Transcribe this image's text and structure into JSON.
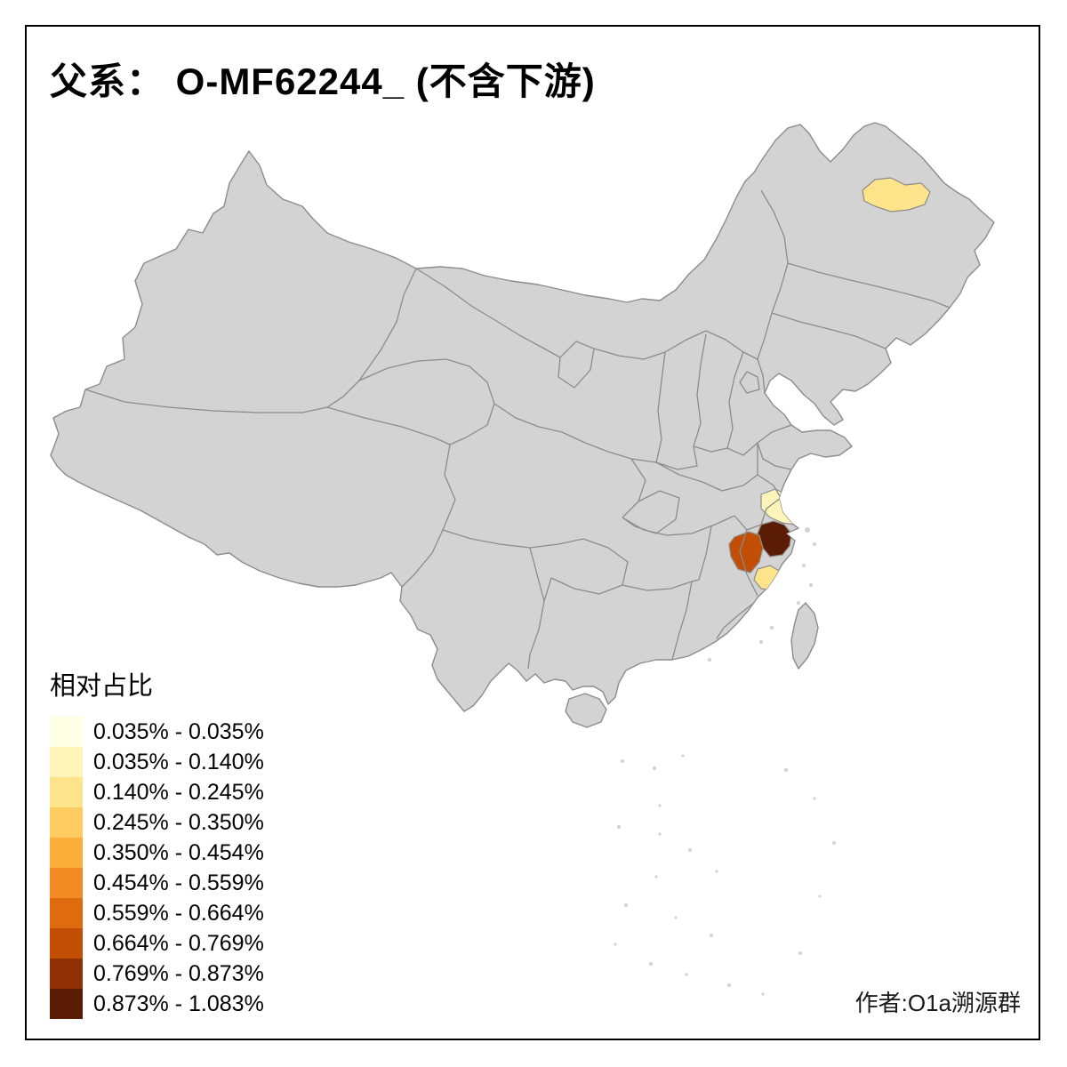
{
  "title": {
    "text": "父系： O-MF62244_ (不含下游)"
  },
  "legend": {
    "title": "相对占比",
    "classes": [
      {
        "label": "0.035% - 0.035%",
        "color": "#FFFFE5"
      },
      {
        "label": "0.035% - 0.140%",
        "color": "#FEF3B8"
      },
      {
        "label": "0.140% - 0.245%",
        "color": "#FDE38A"
      },
      {
        "label": "0.245% - 0.350%",
        "color": "#FDCB5F"
      },
      {
        "label": "0.350% - 0.454%",
        "color": "#FCAE3B"
      },
      {
        "label": "0.454% - 0.559%",
        "color": "#F28C22"
      },
      {
        "label": "0.559% - 0.664%",
        "color": "#DE6C0E"
      },
      {
        "label": "0.664% - 0.769%",
        "color": "#C24D04"
      },
      {
        "label": "0.769% - 0.873%",
        "color": "#8F3104"
      },
      {
        "label": "0.873% - 1.083%",
        "color": "#5A1C04"
      }
    ]
  },
  "map": {
    "base_fill": "#D3D3D3",
    "boundary_color": "#8C8C8C",
    "background": "#FFFFFF",
    "frame_color": "#000000",
    "highlights": [
      {
        "region": "heilongjiang-central",
        "class": 3,
        "color": "#FDE38A"
      },
      {
        "region": "south-jiangsu-shanghai",
        "class": 2,
        "color": "#FEF3B8"
      },
      {
        "region": "north-zhejiang",
        "class": 10,
        "color": "#5A1C04"
      },
      {
        "region": "west-zhejiang",
        "class": 8,
        "color": "#C24D04"
      },
      {
        "region": "south-zhejiang-coast",
        "class": 3,
        "color": "#FDE38A"
      }
    ]
  },
  "attribution": {
    "text": "作者:O1a溯源群"
  }
}
